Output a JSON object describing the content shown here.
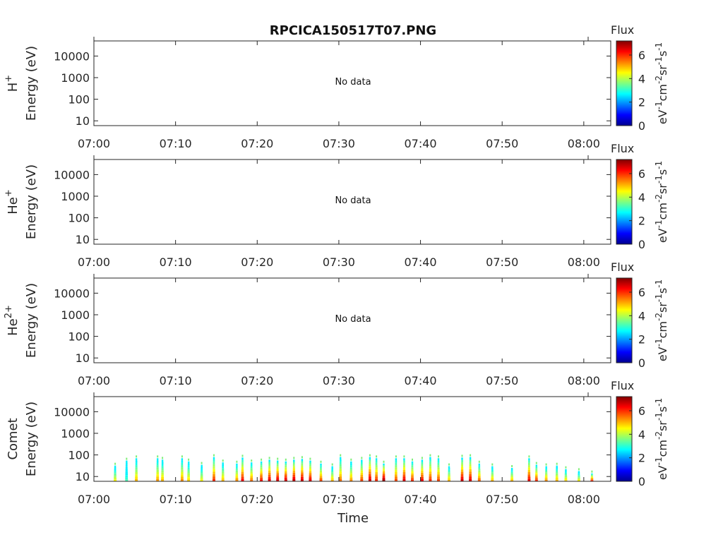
{
  "title": "RPCICA150517T07.PNG",
  "chart_data": {
    "type": "heatmap",
    "title": "RPCICA150517T07.PNG",
    "xlabel": "Time",
    "x_ticks": [
      "07:00",
      "07:10",
      "07:20",
      "07:30",
      "07:40",
      "07:50",
      "08:00"
    ],
    "x_range_minutes": [
      0,
      63.3
    ],
    "y_scale": "log",
    "y_ticks": [
      "10",
      "100",
      "1000",
      "10000"
    ],
    "y_range": [
      6,
      50000
    ],
    "colorbar": {
      "title": "Flux",
      "label": "eV-1cm-2sr-1s-1",
      "ticks": [
        "0",
        "2",
        "4",
        "6"
      ],
      "range": [
        0,
        7.2
      ],
      "colormap": "jet"
    },
    "panels": [
      {
        "name": "H+",
        "ylabel": "Energy (eV)",
        "message": "No data",
        "sub": "+",
        "base": "H"
      },
      {
        "name": "He+",
        "ylabel": "Energy (eV)",
        "message": "No data",
        "sub": "+",
        "base": "He"
      },
      {
        "name": "He2+",
        "ylabel": "Energy (eV)",
        "message": "No data",
        "sub": "2+",
        "base": "He"
      },
      {
        "name": "Comet",
        "ylabel": "Energy (eV)",
        "message": ""
      }
    ],
    "comet_bursts": [
      {
        "t": 2.6,
        "top": 32,
        "peak": 4.5
      },
      {
        "t": 4.0,
        "top": 55,
        "peak": 3.2
      },
      {
        "t": 5.2,
        "top": 70,
        "peak": 5.0
      },
      {
        "t": 7.8,
        "top": 70,
        "peak": 5.2
      },
      {
        "t": 8.4,
        "top": 60,
        "peak": 5.0
      },
      {
        "t": 10.8,
        "top": 70,
        "peak": 5.3
      },
      {
        "t": 11.6,
        "top": 50,
        "peak": 4.8
      },
      {
        "t": 13.2,
        "top": 35,
        "peak": 4.5
      },
      {
        "t": 14.7,
        "top": 80,
        "peak": 6.0
      },
      {
        "t": 15.8,
        "top": 45,
        "peak": 5.0
      },
      {
        "t": 17.5,
        "top": 40,
        "peak": 5.3
      },
      {
        "t": 18.2,
        "top": 75,
        "peak": 6.3
      },
      {
        "t": 19.3,
        "top": 45,
        "peak": 5.5
      },
      {
        "t": 20.5,
        "top": 50,
        "peak": 6.2
      },
      {
        "t": 21.5,
        "top": 60,
        "peak": 6.5
      },
      {
        "t": 22.5,
        "top": 55,
        "peak": 6.6
      },
      {
        "t": 23.5,
        "top": 50,
        "peak": 6.6
      },
      {
        "t": 24.5,
        "top": 60,
        "peak": 6.7
      },
      {
        "t": 25.5,
        "top": 65,
        "peak": 6.6
      },
      {
        "t": 26.5,
        "top": 55,
        "peak": 6.5
      },
      {
        "t": 27.8,
        "top": 40,
        "peak": 5.8
      },
      {
        "t": 29.2,
        "top": 30,
        "peak": 5.0
      },
      {
        "t": 30.2,
        "top": 80,
        "peak": 5.5
      },
      {
        "t": 31.5,
        "top": 50,
        "peak": 5.3
      },
      {
        "t": 32.8,
        "top": 60,
        "peak": 5.8
      },
      {
        "t": 33.8,
        "top": 80,
        "peak": 6.6
      },
      {
        "t": 34.6,
        "top": 70,
        "peak": 6.0
      },
      {
        "t": 35.5,
        "top": 40,
        "peak": 7.0
      },
      {
        "t": 37.0,
        "top": 70,
        "peak": 5.8
      },
      {
        "t": 38.0,
        "top": 70,
        "peak": 6.5
      },
      {
        "t": 39.0,
        "top": 50,
        "peak": 6.0
      },
      {
        "t": 40.2,
        "top": 60,
        "peak": 6.3
      },
      {
        "t": 41.2,
        "top": 80,
        "peak": 6.0
      },
      {
        "t": 42.2,
        "top": 70,
        "peak": 5.8
      },
      {
        "t": 43.5,
        "top": 30,
        "peak": 5.0
      },
      {
        "t": 45.1,
        "top": 75,
        "peak": 6.6
      },
      {
        "t": 46.1,
        "top": 80,
        "peak": 6.5
      },
      {
        "t": 47.2,
        "top": 40,
        "peak": 5.6
      },
      {
        "t": 48.8,
        "top": 30,
        "peak": 5.0
      },
      {
        "t": 51.2,
        "top": 25,
        "peak": 5.0
      },
      {
        "t": 53.3,
        "top": 70,
        "peak": 6.4
      },
      {
        "t": 54.2,
        "top": 35,
        "peak": 6.0
      },
      {
        "t": 55.4,
        "top": 30,
        "peak": 5.3
      },
      {
        "t": 56.7,
        "top": 32,
        "peak": 5.0
      },
      {
        "t": 57.8,
        "top": 22,
        "peak": 4.8
      },
      {
        "t": 59.4,
        "top": 18,
        "peak": 4.6
      },
      {
        "t": 61.0,
        "top": 14,
        "peak": 6.2
      }
    ]
  }
}
